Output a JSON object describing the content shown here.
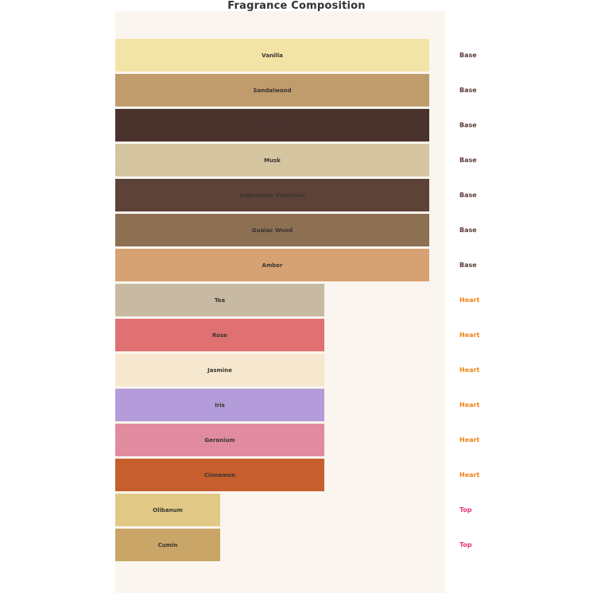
{
  "title": "Fragrance Composition",
  "colors": {
    "page_bg": "#ffffff",
    "plot_bg": "#faf5ee",
    "title_text": "#333333",
    "bar_label_text": "#3a352f",
    "category_base": "#5b3a36",
    "category_heart": "#f08519",
    "category_top": "#e7337f"
  },
  "chart_data": {
    "type": "bar",
    "orientation": "horizontal",
    "title": "Fragrance Composition",
    "xlabel": "",
    "ylabel": "",
    "axes_visible": false,
    "grid": false,
    "legend": "none",
    "value_scale_note": "relative bar length units: Base=3, Heart=2, Top=1",
    "xlim": [
      0,
      3.15
    ],
    "categories": [
      "Vanilla",
      "Sandalwood",
      "Oud",
      "Musk",
      "Indonesian Patchouli",
      "Guaiac Wood",
      "Amber",
      "Tea",
      "Rose",
      "Jasmine",
      "Iris",
      "Geranium",
      "Cinnamon",
      "Olibanum",
      "Cumin"
    ],
    "groups": [
      "Base",
      "Base",
      "Base",
      "Base",
      "Base",
      "Base",
      "Base",
      "Heart",
      "Heart",
      "Heart",
      "Heart",
      "Heart",
      "Heart",
      "Top",
      "Top"
    ],
    "values": [
      3,
      3,
      3,
      3,
      3,
      3,
      3,
      2,
      2,
      2,
      2,
      2,
      2,
      1,
      1
    ],
    "bars": [
      {
        "label": "Vanilla",
        "group": "Base",
        "value": 3,
        "color": "#f2e4a6"
      },
      {
        "label": "Sandalwood",
        "group": "Base",
        "value": 3,
        "color": "#c09b6c"
      },
      {
        "label": "Oud",
        "group": "Base",
        "value": 3,
        "color": "#4b332d"
      },
      {
        "label": "Musk",
        "group": "Base",
        "value": 3,
        "color": "#d6c5a1"
      },
      {
        "label": "Indonesian Patchouli",
        "group": "Base",
        "value": 3,
        "color": "#5d4238"
      },
      {
        "label": "Guaiac Wood",
        "group": "Base",
        "value": 3,
        "color": "#8d6f52"
      },
      {
        "label": "Amber",
        "group": "Base",
        "value": 3,
        "color": "#d7a273"
      },
      {
        "label": "Tea",
        "group": "Heart",
        "value": 2,
        "color": "#c8baa2"
      },
      {
        "label": "Rose",
        "group": "Heart",
        "value": 2,
        "color": "#e07173"
      },
      {
        "label": "Jasmine",
        "group": "Heart",
        "value": 2,
        "color": "#f6e8ce"
      },
      {
        "label": "Iris",
        "group": "Heart",
        "value": 2,
        "color": "#b39cd9"
      },
      {
        "label": "Geranium",
        "group": "Heart",
        "value": 2,
        "color": "#e18ba0"
      },
      {
        "label": "Cinnamon",
        "group": "Heart",
        "value": 2,
        "color": "#c65e2e"
      },
      {
        "label": "Olibanum",
        "group": "Top",
        "value": 1,
        "color": "#e1c987"
      },
      {
        "label": "Cumin",
        "group": "Top",
        "value": 1,
        "color": "#c9a668"
      }
    ]
  }
}
